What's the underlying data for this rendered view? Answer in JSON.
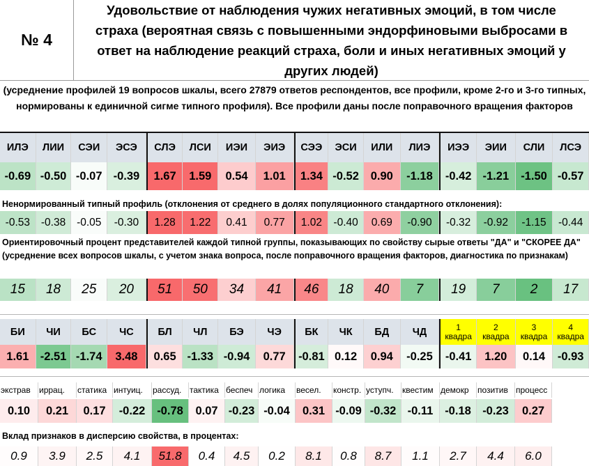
{
  "header": {
    "number": "№ 4",
    "title": "Удовольствие от наблюдения чужих негативных эмоций, в том числе страха (вероятная связь с повышенными эндорфиновыми выбросами в ответ на наблюдение реакций страха, боли и иных негативных эмоций у других людей)"
  },
  "note": "(усреднение профилей 19 вопросов шкалы, всего 27879 ответов респондентов, все профили, кроме 2-го и 3-го типных, нормированы к единичной сигме типного профиля). Все профили даны после поправочного вращения факторов",
  "types": [
    "ИЛЭ",
    "ЛИИ",
    "СЭИ",
    "ЭСЭ",
    "СЛЭ",
    "ЛСИ",
    "ИЭИ",
    "ЭИЭ",
    "СЭЭ",
    "ЭСИ",
    "ИЛИ",
    "ЛИЭ",
    "ИЭЭ",
    "ЭИИ",
    "СЛИ",
    "ЛСЭ"
  ],
  "normalized_profile": [
    "-0.69",
    "-0.50",
    "-0.07",
    "-0.39",
    "1.67",
    "1.59",
    "0.54",
    "1.01",
    "1.34",
    "-0.52",
    "0.90",
    "-1.18",
    "-0.42",
    "-1.21",
    "-1.50",
    "-0.57"
  ],
  "raw_profile_label": "Ненормированный типный профиль (отклонения от среднего  в долях популяционного стандартного отклонения):",
  "raw_profile": [
    "-0.53",
    "-0.38",
    "-0.05",
    "-0.30",
    "1.28",
    "1.22",
    "0.41",
    "0.77",
    "1.02",
    "-0.40",
    "0.69",
    "-0.90",
    "-0.32",
    "-0.92",
    "-1.15",
    "-0.44"
  ],
  "percent_label": "Ориентировочный процент представителей каждой типной группы, показывающих по свойству сырые ответы \"ДА\" и \"СКОРЕЕ ДА\" (усреднение всех вопросов шкалы, с учетом знака вопроса, после поправочного вращения факторов, диагностика по признакам)",
  "percent": [
    "15",
    "18",
    "25",
    "20",
    "51",
    "50",
    "34",
    "41",
    "46",
    "18",
    "40",
    "7",
    "19",
    "7",
    "2",
    "17"
  ],
  "dichotomies": [
    "БИ",
    "ЧИ",
    "БС",
    "ЧС",
    "БЛ",
    "ЧЛ",
    "БЭ",
    "ЧЭ",
    "БК",
    "ЧК",
    "БД",
    "ЧД"
  ],
  "quadras": [
    {
      "num": "1",
      "word": "квадра"
    },
    {
      "num": "2",
      "word": "квадра"
    },
    {
      "num": "3",
      "word": "квадра"
    },
    {
      "num": "4",
      "word": "квадра"
    }
  ],
  "dichotomy_values": [
    "1.61",
    "-2.51",
    "-1.74",
    "3.48",
    "0.65",
    "-1.33",
    "-0.94",
    "0.77",
    "-0.81",
    "0.12",
    "0.94",
    "-0.25",
    "-0.41",
    "1.20",
    "0.14",
    "-0.93"
  ],
  "signs": [
    "экстрав",
    "иррац.",
    "статика",
    "интуиц.",
    "рассуд.",
    "тактика",
    "беспеч",
    "логика",
    "весел.",
    "констр.",
    "уступч.",
    "квестим",
    "демокр",
    "позитив",
    "процесс"
  ],
  "sign_values": [
    "0.10",
    "0.21",
    "0.17",
    "-0.22",
    "-0.78",
    "0.07",
    "-0.23",
    "-0.04",
    "0.31",
    "-0.09",
    "-0.32",
    "-0.11",
    "-0.18",
    "-0.23",
    "0.27"
  ],
  "contrib_label": "Вклад признаков в дисперсию свойства, в процентах:",
  "contrib": [
    "0.9",
    "3.9",
    "2.5",
    "4.1",
    "51.8",
    "0.4",
    "4.5",
    "0.2",
    "8.1",
    "0.8",
    "8.7",
    "1.1",
    "2.7",
    "4.4",
    "6.0"
  ],
  "colors": {
    "pos_strong": "#f8696b",
    "neg_strong": "#63be7b",
    "quadra_bg": "#ffff00"
  }
}
